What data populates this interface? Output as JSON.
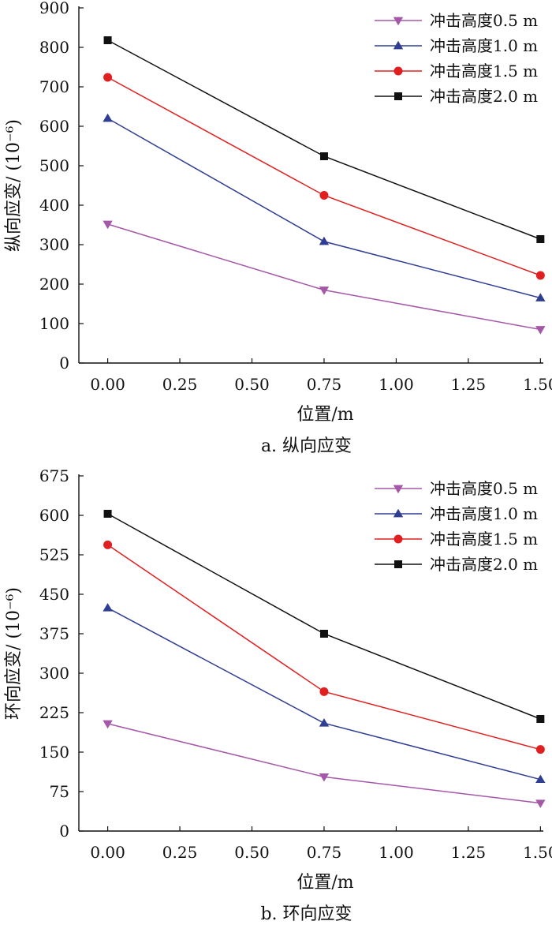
{
  "chart_data": [
    {
      "type": "line",
      "caption": "a. 纵向应变",
      "xlabel": "位置/m",
      "ylabel": "纵向应变/ (10⁻⁶)",
      "xlim": [
        -0.1,
        1.51
      ],
      "ylim": [
        0,
        900
      ],
      "xticks": [
        "0.00",
        "0.25",
        "0.50",
        "0.75",
        "1.00",
        "1.25",
        "1.50"
      ],
      "yticks": [
        "0",
        "100",
        "200",
        "300",
        "400",
        "500",
        "600",
        "700",
        "800",
        "900"
      ],
      "legend_position": "top-right",
      "x": [
        0.0,
        0.75,
        1.5
      ],
      "series": [
        {
          "name": "冲击高度0.5 m",
          "marker": "triangle-down",
          "line_color": "#a558a8",
          "marker_color": "#a558a8",
          "values": [
            352,
            185,
            85
          ]
        },
        {
          "name": "冲击高度1.0 m",
          "marker": "triangle-up",
          "line_color": "#2f3e93",
          "marker_color": "#2f3e93",
          "values": [
            620,
            308,
            165
          ]
        },
        {
          "name": "冲击高度1.5 m",
          "marker": "circle",
          "line_color": "#e02020",
          "marker_color": "#e02020",
          "values": [
            724,
            425,
            222
          ]
        },
        {
          "name": "冲击高度2.0 m",
          "marker": "square",
          "line_color": "#111111",
          "marker_color": "#111111",
          "values": [
            818,
            524,
            314
          ]
        }
      ]
    },
    {
      "type": "line",
      "caption": "b. 环向应变",
      "xlabel": "位置/m",
      "ylabel": "环向应变/ (10⁻⁶)",
      "xlim": [
        -0.1,
        1.51
      ],
      "ylim": [
        0,
        675
      ],
      "xticks": [
        "0.00",
        "0.25",
        "0.50",
        "0.75",
        "1.00",
        "1.25",
        "1.50"
      ],
      "yticks": [
        "0",
        "75",
        "150",
        "225",
        "300",
        "375",
        "450",
        "525",
        "600",
        "675"
      ],
      "legend_position": "top-right",
      "x": [
        0.0,
        0.75,
        1.5
      ],
      "series": [
        {
          "name": "冲击高度0.5 m",
          "marker": "triangle-down",
          "line_color": "#a558a8",
          "marker_color": "#a558a8",
          "values": [
            204,
            103,
            53
          ]
        },
        {
          "name": "冲击高度1.0 m",
          "marker": "triangle-up",
          "line_color": "#2f3e93",
          "marker_color": "#2f3e93",
          "values": [
            424,
            205,
            98
          ]
        },
        {
          "name": "冲击高度1.5 m",
          "marker": "circle",
          "line_color": "#e02020",
          "marker_color": "#e02020",
          "values": [
            544,
            265,
            155
          ]
        },
        {
          "name": "冲击高度2.0 m",
          "marker": "square",
          "line_color": "#111111",
          "marker_color": "#111111",
          "values": [
            603,
            375,
            213
          ]
        }
      ]
    }
  ]
}
